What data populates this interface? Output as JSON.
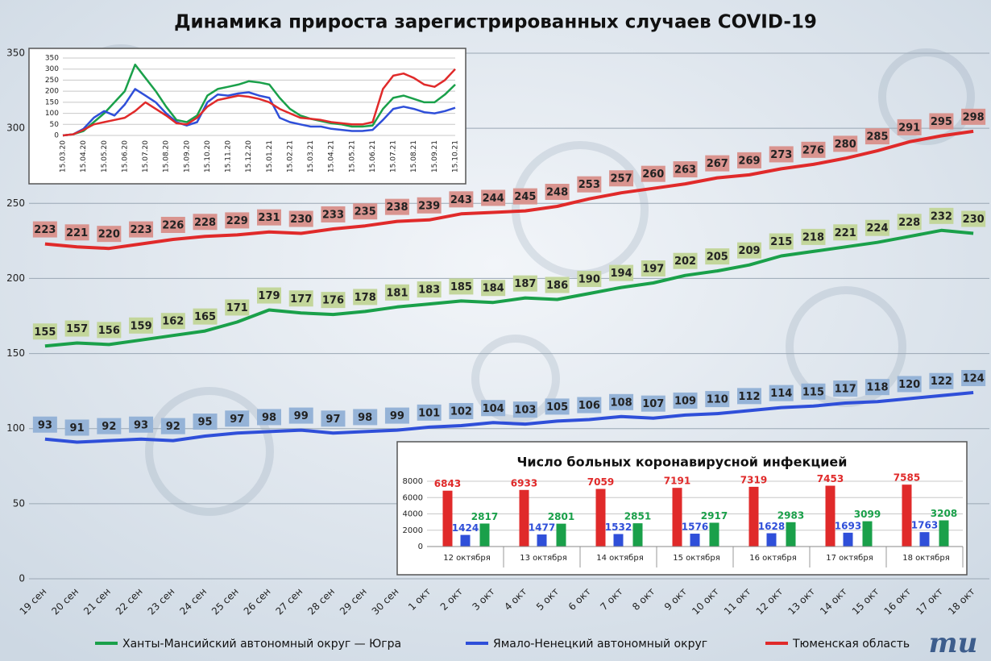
{
  "logo": "mu",
  "chart_data": [
    {
      "type": "line",
      "title": "Динамика прироста зарегистрированных случаев COVID-19",
      "categories": [
        "19 сен",
        "20 сен",
        "21 сен",
        "22 сен",
        "23 сен",
        "24 сен",
        "25 сен",
        "26 сен",
        "27 сен",
        "28 сен",
        "29 сен",
        "30 сен",
        "1 окт",
        "2 окт",
        "3 окт",
        "4 окт",
        "5 окт",
        "6 окт",
        "7 окт",
        "8 окт",
        "9 окт",
        "10 окт",
        "11 окт",
        "12 окт",
        "13 окт",
        "14 окт",
        "15 окт",
        "16 окт",
        "17 окт",
        "18 окт"
      ],
      "series": [
        {
          "name": "Ханты-Мансийский автономный округ — Югра",
          "color": "#1aa04a",
          "label_color": "#c3d69b",
          "values": [
            155,
            157,
            156,
            159,
            162,
            165,
            171,
            179,
            177,
            176,
            178,
            181,
            183,
            185,
            184,
            187,
            186,
            190,
            194,
            197,
            202,
            205,
            209,
            215,
            218,
            221,
            224,
            228,
            232,
            230
          ]
        },
        {
          "name": "Ямало-Ненецкий автономный округ",
          "color": "#2f4fd9",
          "label_color": "#95b3d7",
          "values": [
            93,
            91,
            92,
            93,
            92,
            95,
            97,
            98,
            99,
            97,
            98,
            99,
            101,
            102,
            104,
            103,
            105,
            106,
            108,
            107,
            109,
            110,
            112,
            114,
            115,
            117,
            118,
            120,
            122,
            124
          ]
        },
        {
          "name": "Тюменская область",
          "color": "#e02a2a",
          "label_color": "#d9948f",
          "values": [
            223,
            221,
            220,
            223,
            226,
            228,
            229,
            231,
            230,
            233,
            235,
            238,
            239,
            243,
            244,
            245,
            248,
            253,
            257,
            260,
            263,
            267,
            269,
            273,
            276,
            280,
            285,
            291,
            295,
            298
          ]
        }
      ],
      "ylim": [
        0,
        350
      ],
      "yticks": [
        0,
        50,
        100,
        150,
        200,
        250,
        300,
        350
      ],
      "grid": true
    },
    {
      "type": "line",
      "categories": [
        "15.03.20",
        null,
        "15.04.20",
        null,
        "15.05.20",
        null,
        "15.06.20",
        null,
        "15.07.20",
        null,
        "15.08.20",
        null,
        "15.09.20",
        null,
        "15.10.20",
        null,
        "15.11.20",
        null,
        "15.12.20",
        null,
        "15.01.21",
        null,
        "15.02.21",
        null,
        "15.03.21",
        null,
        "15.04.21",
        null,
        "15.05.21",
        null,
        "15.06.21",
        null,
        "15.07.21",
        null,
        "15.08.21",
        null,
        "15.09.21",
        null,
        "15.10.21"
      ],
      "series": [
        {
          "color": "#1aa04a",
          "values": [
            0,
            5,
            20,
            60,
            100,
            150,
            200,
            320,
            260,
            200,
            130,
            70,
            60,
            90,
            180,
            210,
            220,
            230,
            245,
            240,
            230,
            170,
            120,
            90,
            75,
            65,
            55,
            50,
            40,
            40,
            45,
            120,
            170,
            180,
            165,
            150,
            150,
            185,
            230
          ]
        },
        {
          "color": "#2f4fd9",
          "values": [
            0,
            5,
            30,
            80,
            110,
            90,
            140,
            210,
            180,
            150,
            100,
            60,
            45,
            60,
            150,
            185,
            180,
            190,
            195,
            180,
            170,
            80,
            60,
            50,
            40,
            40,
            30,
            25,
            20,
            20,
            25,
            70,
            120,
            130,
            120,
            105,
            100,
            110,
            125
          ]
        },
        {
          "color": "#e02a2a",
          "values": [
            0,
            5,
            25,
            50,
            60,
            70,
            80,
            110,
            150,
            120,
            90,
            55,
            50,
            80,
            130,
            160,
            170,
            180,
            175,
            165,
            150,
            120,
            100,
            80,
            75,
            70,
            60,
            55,
            50,
            50,
            60,
            210,
            270,
            280,
            260,
            230,
            220,
            250,
            300
          ]
        }
      ],
      "ylim": [
        0,
        350
      ],
      "yticks": [
        0,
        50,
        100,
        150,
        200,
        250,
        300,
        350
      ],
      "grid": true
    },
    {
      "type": "bar",
      "title": "Число больных коронавирусной  инфекцией",
      "categories": [
        "12 октября",
        "13 октября",
        "14 октября",
        "15 октября",
        "16 октября",
        "17 октября",
        "18 октября"
      ],
      "series": [
        {
          "color": "#e02a2a",
          "values": [
            6843,
            6933,
            7059,
            7191,
            7319,
            7453,
            7585
          ]
        },
        {
          "color": "#2f4fd9",
          "values": [
            1424,
            1477,
            1532,
            1576,
            1628,
            1693,
            1763
          ]
        },
        {
          "color": "#1aa04a",
          "values": [
            2817,
            2801,
            2851,
            2917,
            2983,
            3099,
            3208
          ]
        }
      ],
      "ylim": [
        0,
        8000
      ],
      "yticks": [
        0,
        2000,
        4000,
        6000,
        8000
      ],
      "grid": true
    }
  ]
}
